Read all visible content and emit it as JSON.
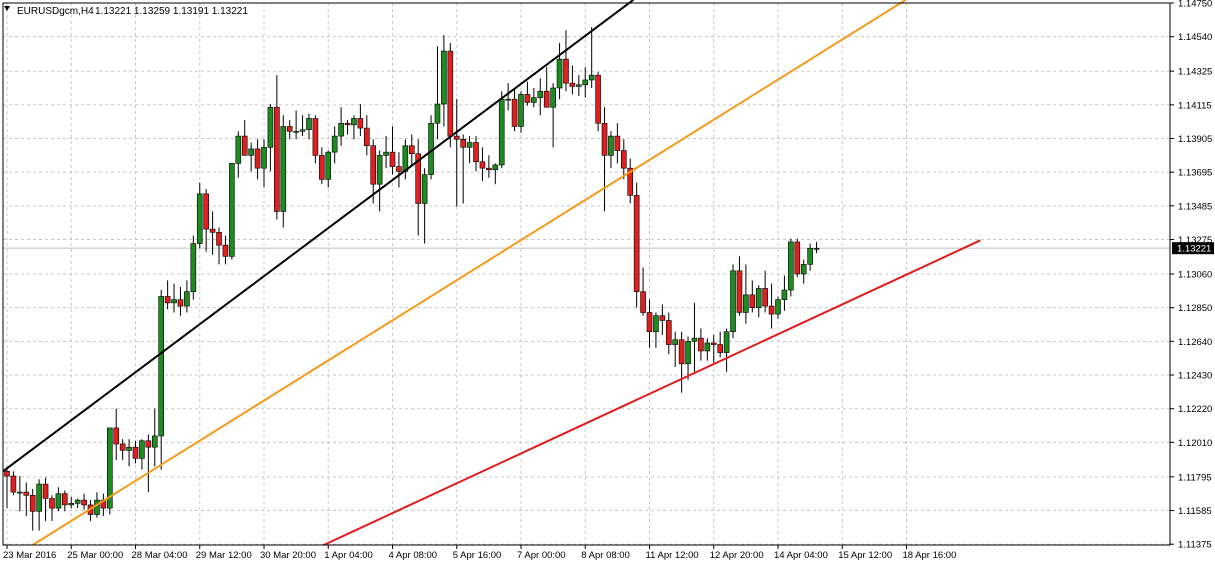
{
  "header": {
    "symbol_timeframe": "EURUSDgcm,H4",
    "ohlc": "1.13221 1.13259 1.13191 1.13221"
  },
  "chart_data": {
    "type": "candlestick",
    "title": "EURUSDgcm,H4  1.13221 1.13259 1.13191 1.13221",
    "ylim": [
      1.1137,
      1.1475
    ],
    "y_ticks": [
      "1.14750",
      "1.14540",
      "1.14325",
      "1.14115",
      "1.13905",
      "1.13695",
      "1.13485",
      "1.13275",
      "1.13060",
      "1.12850",
      "1.12640",
      "1.12430",
      "1.12220",
      "1.12010",
      "1.11795",
      "1.11585",
      "1.11375"
    ],
    "current_price": "1.13221",
    "x_ticks": [
      "23 Mar 2016",
      "25 Mar 00:00",
      "28 Mar 04:00",
      "29 Mar 12:00",
      "30 Mar 20:00",
      "1 Apr 04:00",
      "4 Apr 08:00",
      "5 Apr 16:00",
      "7 Apr 00:00",
      "8 Apr 08:00",
      "11 Apr 12:00",
      "12 Apr 20:00",
      "14 Apr 04:00",
      "15 Apr 12:00",
      "18 Apr 16:00"
    ],
    "grid": true,
    "colors": {
      "bull": "#1f8a1f",
      "bear": "#e02020",
      "wick": "#000000",
      "grid": "#c8c8c8",
      "trendline_black": "#000000",
      "trendline_orange": "#f59a1a",
      "trendline_red": "#e01c1c",
      "price_line": "#c0c0c0"
    },
    "candles": [
      [
        1.1183,
        1.1185,
        1.116,
        1.118
      ],
      [
        1.118,
        1.1183,
        1.1168,
        1.117
      ],
      [
        1.117,
        1.118,
        1.1158,
        1.117
      ],
      [
        1.117,
        1.1176,
        1.1155,
        1.1168
      ],
      [
        1.1168,
        1.1172,
        1.1146,
        1.1158
      ],
      [
        1.1158,
        1.1178,
        1.1146,
        1.1175
      ],
      [
        1.1175,
        1.1179,
        1.1152,
        1.1166
      ],
      [
        1.1166,
        1.1168,
        1.1152,
        1.116
      ],
      [
        1.116,
        1.1173,
        1.1158,
        1.1169
      ],
      [
        1.1169,
        1.1171,
        1.1158,
        1.1162
      ],
      [
        1.1162,
        1.1167,
        1.116,
        1.1163
      ],
      [
        1.1163,
        1.1166,
        1.116,
        1.1165
      ],
      [
        1.1165,
        1.1169,
        1.1159,
        1.1162
      ],
      [
        1.1162,
        1.1165,
        1.1152,
        1.1156
      ],
      [
        1.1156,
        1.117,
        1.1154,
        1.1165
      ],
      [
        1.1165,
        1.1169,
        1.1155,
        1.116
      ],
      [
        1.116,
        1.121,
        1.1156,
        1.121
      ],
      [
        1.121,
        1.1222,
        1.119,
        1.12
      ],
      [
        1.12,
        1.1203,
        1.119,
        1.1196
      ],
      [
        1.1196,
        1.1203,
        1.1186,
        1.1198
      ],
      [
        1.1198,
        1.1202,
        1.1188,
        1.1191
      ],
      [
        1.1191,
        1.1203,
        1.1184,
        1.1202
      ],
      [
        1.1202,
        1.1206,
        1.117,
        1.1198
      ],
      [
        1.1198,
        1.1222,
        1.1186,
        1.1205
      ],
      [
        1.1205,
        1.1296,
        1.1184,
        1.1292
      ],
      [
        1.1292,
        1.1302,
        1.1284,
        1.1288
      ],
      [
        1.1288,
        1.13,
        1.1282,
        1.129
      ],
      [
        1.129,
        1.1298,
        1.128,
        1.1286
      ],
      [
        1.1286,
        1.1302,
        1.1282,
        1.1295
      ],
      [
        1.1295,
        1.133,
        1.129,
        1.1325
      ],
      [
        1.1325,
        1.1363,
        1.1322,
        1.1356
      ],
      [
        1.1356,
        1.1359,
        1.132,
        1.1334
      ],
      [
        1.1334,
        1.1345,
        1.1318,
        1.1332
      ],
      [
        1.1332,
        1.1335,
        1.1312,
        1.1324
      ],
      [
        1.1324,
        1.133,
        1.1312,
        1.1317
      ],
      [
        1.1317,
        1.1375,
        1.1315,
        1.1375
      ],
      [
        1.1375,
        1.1395,
        1.1366,
        1.1392
      ],
      [
        1.1392,
        1.1402,
        1.138,
        1.138
      ],
      [
        1.138,
        1.1388,
        1.137,
        1.1384
      ],
      [
        1.1384,
        1.139,
        1.1365,
        1.1372
      ],
      [
        1.1372,
        1.139,
        1.136,
        1.1385
      ],
      [
        1.1385,
        1.1412,
        1.137,
        1.141
      ],
      [
        1.141,
        1.143,
        1.134,
        1.1345
      ],
      [
        1.1345,
        1.1405,
        1.1335,
        1.1398
      ],
      [
        1.1398,
        1.1402,
        1.139,
        1.1395
      ],
      [
        1.1395,
        1.1408,
        1.139,
        1.1395
      ],
      [
        1.1395,
        1.1405,
        1.1392,
        1.1396
      ],
      [
        1.1396,
        1.1406,
        1.139,
        1.1403
      ],
      [
        1.1403,
        1.1405,
        1.1375,
        1.138
      ],
      [
        1.138,
        1.1385,
        1.1362,
        1.1365
      ],
      [
        1.1365,
        1.1383,
        1.136,
        1.1382
      ],
      [
        1.1382,
        1.1398,
        1.1375,
        1.1392
      ],
      [
        1.1392,
        1.141,
        1.1386,
        1.14
      ],
      [
        1.14,
        1.1402,
        1.1393,
        1.1399
      ],
      [
        1.1399,
        1.1405,
        1.139,
        1.1403
      ],
      [
        1.1403,
        1.1412,
        1.1392,
        1.1397
      ],
      [
        1.1397,
        1.1405,
        1.138,
        1.1386
      ],
      [
        1.1386,
        1.139,
        1.135,
        1.1362
      ],
      [
        1.1362,
        1.1383,
        1.1345,
        1.138
      ],
      [
        1.138,
        1.1392,
        1.1372,
        1.1382
      ],
      [
        1.1382,
        1.1398,
        1.1368,
        1.1373
      ],
      [
        1.1373,
        1.1382,
        1.136,
        1.137
      ],
      [
        1.137,
        1.139,
        1.1365,
        1.1386
      ],
      [
        1.1386,
        1.1393,
        1.1373,
        1.1381
      ],
      [
        1.1381,
        1.139,
        1.133,
        1.135
      ],
      [
        1.135,
        1.1372,
        1.1325,
        1.1368
      ],
      [
        1.1368,
        1.1405,
        1.1365,
        1.14
      ],
      [
        1.14,
        1.1448,
        1.139,
        1.1412
      ],
      [
        1.1412,
        1.1455,
        1.1398,
        1.1445
      ],
      [
        1.1445,
        1.145,
        1.1385,
        1.1392
      ],
      [
        1.1392,
        1.1415,
        1.1348,
        1.139
      ],
      [
        1.139,
        1.1393,
        1.135,
        1.1385
      ],
      [
        1.1385,
        1.1392,
        1.1375,
        1.1388
      ],
      [
        1.1388,
        1.1392,
        1.137,
        1.1376
      ],
      [
        1.1376,
        1.1385,
        1.1364,
        1.1372
      ],
      [
        1.1372,
        1.138,
        1.1366,
        1.1371
      ],
      [
        1.1371,
        1.1375,
        1.1362,
        1.1374
      ],
      [
        1.1374,
        1.142,
        1.1372,
        1.1415
      ],
      [
        1.1415,
        1.1425,
        1.1408,
        1.1415
      ],
      [
        1.1415,
        1.1422,
        1.1395,
        1.1398
      ],
      [
        1.1398,
        1.142,
        1.1394,
        1.1418
      ],
      [
        1.1418,
        1.1426,
        1.1411,
        1.1413
      ],
      [
        1.1413,
        1.1422,
        1.141,
        1.1416
      ],
      [
        1.1416,
        1.1428,
        1.1405,
        1.142
      ],
      [
        1.142,
        1.1435,
        1.141,
        1.141
      ],
      [
        1.141,
        1.1425,
        1.1385,
        1.1422
      ],
      [
        1.1422,
        1.145,
        1.1415,
        1.144
      ],
      [
        1.144,
        1.1458,
        1.142,
        1.1425
      ],
      [
        1.1425,
        1.1436,
        1.1418,
        1.1423
      ],
      [
        1.1423,
        1.143,
        1.1417,
        1.1424
      ],
      [
        1.1424,
        1.1435,
        1.1416,
        1.1427
      ],
      [
        1.1427,
        1.146,
        1.1422,
        1.143
      ],
      [
        1.143,
        1.1432,
        1.1395,
        1.14
      ],
      [
        1.14,
        1.141,
        1.1345,
        1.138
      ],
      [
        1.138,
        1.1395,
        1.1372,
        1.1392
      ],
      [
        1.1392,
        1.14,
        1.1375,
        1.1383
      ],
      [
        1.1383,
        1.139,
        1.1365,
        1.1372
      ],
      [
        1.1372,
        1.1378,
        1.135,
        1.1355
      ],
      [
        1.1355,
        1.1363,
        1.1285,
        1.1295
      ],
      [
        1.1295,
        1.131,
        1.128,
        1.1282
      ],
      [
        1.1282,
        1.129,
        1.126,
        1.127
      ],
      [
        1.127,
        1.1282,
        1.126,
        1.128
      ],
      [
        1.128,
        1.1287,
        1.1268,
        1.1277
      ],
      [
        1.1277,
        1.1282,
        1.1256,
        1.1262
      ],
      [
        1.1262,
        1.127,
        1.1248,
        1.1265
      ],
      [
        1.1265,
        1.127,
        1.1232,
        1.125
      ],
      [
        1.125,
        1.1267,
        1.124,
        1.1264
      ],
      [
        1.1264,
        1.1288,
        1.1245,
        1.1266
      ],
      [
        1.1266,
        1.1272,
        1.1252,
        1.1258
      ],
      [
        1.1258,
        1.1266,
        1.1252,
        1.1263
      ],
      [
        1.1263,
        1.1268,
        1.125,
        1.1262
      ],
      [
        1.1262,
        1.127,
        1.1254,
        1.1257
      ],
      [
        1.1257,
        1.1272,
        1.1245,
        1.127
      ],
      [
        1.127,
        1.1312,
        1.1266,
        1.1308
      ],
      [
        1.1308,
        1.1317,
        1.128,
        1.1282
      ],
      [
        1.1282,
        1.1312,
        1.1275,
        1.1293
      ],
      [
        1.1293,
        1.1302,
        1.1282,
        1.1285
      ],
      [
        1.1285,
        1.1299,
        1.1279,
        1.1297
      ],
      [
        1.1297,
        1.1308,
        1.1282,
        1.1286
      ],
      [
        1.1286,
        1.13,
        1.1272,
        1.1281
      ],
      [
        1.1281,
        1.1292,
        1.1278,
        1.129
      ],
      [
        1.129,
        1.1305,
        1.1283,
        1.1296
      ],
      [
        1.1296,
        1.1328,
        1.1292,
        1.1326
      ],
      [
        1.1326,
        1.1328,
        1.1304,
        1.1306
      ],
      [
        1.1306,
        1.1315,
        1.13,
        1.1312
      ],
      [
        1.1312,
        1.1325,
        1.1308,
        1.1322
      ],
      [
        1.1322,
        1.1326,
        1.1319,
        1.1322
      ]
    ]
  }
}
